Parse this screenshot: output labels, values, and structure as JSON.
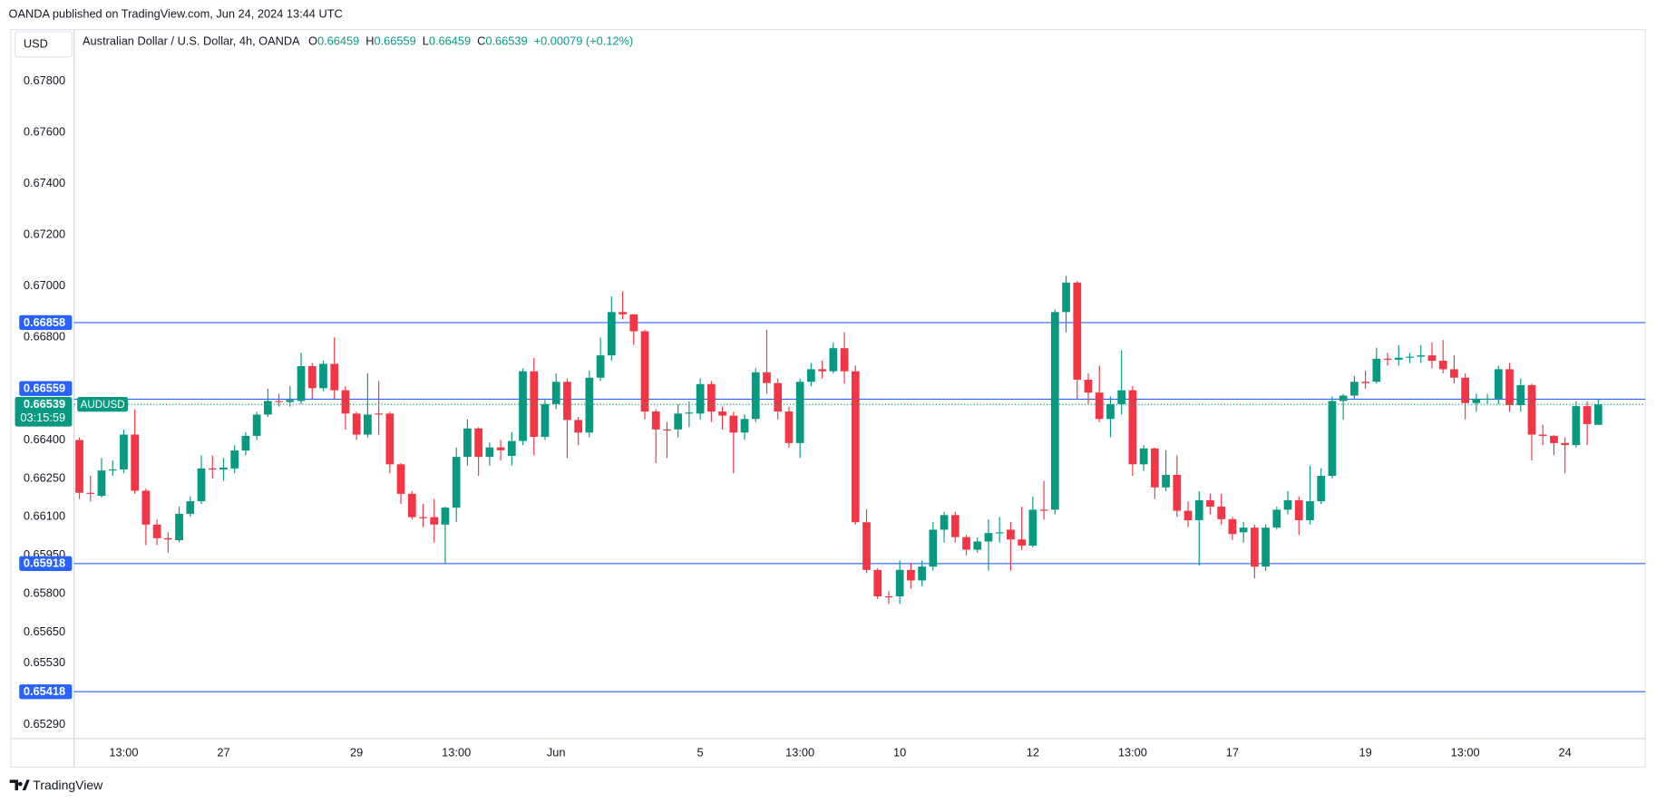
{
  "header": {
    "publisher_line": "OANDA published on TradingView.com, Jun 24, 2024 13:44 UTC",
    "currency": "USD",
    "footer": "TradingView"
  },
  "chart_data": {
    "type": "candlestick",
    "legend_title": "Australian Dollar / U.S. Dollar, 4h, OANDA",
    "ohlc_letters": [
      "O",
      "H",
      "L",
      "C"
    ],
    "change": "+0.00079 (+0.12%)",
    "symbol": "AUDUSD",
    "countdown": "03:15:59",
    "up_color": "#089981",
    "down_color": "#f23645",
    "level_color": "#2962ff",
    "levels": [
      0.66858,
      0.66559,
      0.65918,
      0.65418
    ],
    "ylim": [
      0.65235,
      0.68001
    ],
    "yticks": [
      {
        "value": 0.678,
        "label": "0.67800"
      },
      {
        "value": 0.676,
        "label": "0.67600"
      },
      {
        "value": 0.674,
        "label": "0.67400"
      },
      {
        "value": 0.672,
        "label": "0.67200"
      },
      {
        "value": 0.67,
        "label": "0.67000"
      },
      {
        "value": 0.668,
        "label": "0.66800"
      },
      {
        "value": 0.664,
        "label": "0.66400"
      },
      {
        "value": 0.6625,
        "label": "0.66250"
      },
      {
        "value": 0.661,
        "label": "0.66100"
      },
      {
        "value": 0.6595,
        "label": "0.65950"
      },
      {
        "value": 0.658,
        "label": "0.65800"
      },
      {
        "value": 0.6565,
        "label": "0.65650"
      },
      {
        "value": 0.6553,
        "label": "0.65530"
      },
      {
        "value": 0.6529,
        "label": "0.65290"
      }
    ],
    "categories": [
      null,
      null,
      null,
      null,
      "13:00",
      null,
      null,
      null,
      null,
      null,
      null,
      null,
      null,
      "27",
      null,
      null,
      null,
      null,
      null,
      null,
      null,
      null,
      null,
      null,
      null,
      "29",
      null,
      null,
      null,
      null,
      null,
      null,
      null,
      null,
      "13:00",
      null,
      null,
      null,
      null,
      null,
      null,
      null,
      null,
      "Jun",
      null,
      null,
      null,
      null,
      null,
      null,
      null,
      null,
      null,
      null,
      null,
      null,
      "5",
      null,
      null,
      null,
      null,
      null,
      null,
      null,
      null,
      "13:00",
      null,
      null,
      null,
      null,
      null,
      null,
      null,
      null,
      "10",
      null,
      null,
      null,
      null,
      null,
      null,
      null,
      null,
      null,
      null,
      null,
      "12",
      null,
      null,
      null,
      null,
      null,
      null,
      null,
      null,
      "13:00",
      null,
      null,
      null,
      null,
      null,
      null,
      null,
      null,
      "17",
      null,
      null,
      null,
      null,
      null,
      null,
      null,
      null,
      null,
      null,
      null,
      "19",
      null,
      null,
      null,
      null,
      null,
      null,
      null,
      null,
      "13:00",
      null,
      null,
      null,
      null,
      null,
      null,
      null,
      null,
      "24",
      null,
      null,
      null
    ],
    "open": [
      0.664,
      0.66194,
      0.66182,
      0.66281,
      0.66285,
      0.66421,
      0.66202,
      0.6607,
      0.66017,
      0.66009,
      0.66112,
      0.66161,
      0.66289,
      0.66285,
      0.66289,
      0.66359,
      0.66416,
      0.66499,
      0.66552,
      0.66548,
      0.66552,
      0.66688,
      0.66602,
      0.66697,
      0.66594,
      0.66503,
      0.66421,
      0.66503,
      0.66503,
      0.66305,
      0.6619,
      0.66099,
      0.66099,
      0.6607,
      0.66136,
      0.66334,
      0.66445,
      0.66334,
      0.66371,
      0.66338,
      0.66396,
      0.66668,
      0.66412,
      0.6654,
      0.66627,
      0.66478,
      0.66429,
      0.66643,
      0.6673,
      0.66899,
      0.6689,
      0.66824,
      0.66511,
      0.66441,
      0.66441,
      0.66503,
      0.66503,
      0.66618,
      0.66511,
      0.66495,
      0.66429,
      0.66482,
      0.66664,
      0.66622,
      0.66511,
      0.66388,
      0.66627,
      0.66676,
      0.66668,
      0.66758,
      0.66668,
      0.66079,
      0.65893,
      0.6579,
      0.6579,
      0.65893,
      0.65852,
      0.65906,
      0.6605,
      0.66107,
      0.66021,
      0.65972,
      0.66004,
      0.66037,
      0.6605,
      0.66012,
      0.65988,
      0.66128,
      0.66128,
      0.66899,
      0.67014,
      0.66635,
      0.66585,
      0.66482,
      0.6654,
      0.66594,
      0.66305,
      0.66367,
      0.66215,
      0.66264,
      0.66124,
      0.66087,
      0.66165,
      0.6614,
      0.66091,
      0.6604,
      0.66058,
      0.65906,
      0.66058,
      0.66128,
      0.66165,
      0.66087,
      0.66161,
      0.6626,
      0.66552,
      0.66573,
      0.66627,
      0.66627,
      0.66717,
      0.66713,
      0.66721,
      0.66725,
      0.6673,
      0.66709,
      0.66676,
      0.66643,
      0.66544,
      0.66561,
      0.66561,
      0.66676,
      0.66536,
      0.66614,
      0.66421,
      0.66416,
      0.66388,
      0.6638,
      0.66532,
      0.66459
    ],
    "high": [
      0.6641,
      0.6626,
      0.6633,
      0.6632,
      0.6644,
      0.6652,
      0.6621,
      0.6609,
      0.6604,
      0.6614,
      0.6618,
      0.6634,
      0.6634,
      0.6633,
      0.6638,
      0.6643,
      0.6651,
      0.666,
      0.6658,
      0.6661,
      0.6674,
      0.667,
      0.6671,
      0.668,
      0.6661,
      0.6651,
      0.6666,
      0.6663,
      0.6651,
      0.6631,
      0.662,
      0.6615,
      0.6617,
      0.6614,
      0.6637,
      0.6648,
      0.6645,
      0.6639,
      0.664,
      0.6643,
      0.6668,
      0.6672,
      0.6656,
      0.6666,
      0.6664,
      0.6649,
      0.6667,
      0.668,
      0.6696,
      0.6698,
      0.6689,
      0.6683,
      0.6652,
      0.6647,
      0.6654,
      0.6655,
      0.6664,
      0.6663,
      0.6653,
      0.6651,
      0.665,
      0.6668,
      0.6683,
      0.6664,
      0.6653,
      0.6664,
      0.667,
      0.6671,
      0.6678,
      0.6682,
      0.6669,
      0.6613,
      0.659,
      0.6581,
      0.6593,
      0.6592,
      0.6593,
      0.6608,
      0.6612,
      0.6612,
      0.6603,
      0.6602,
      0.6609,
      0.661,
      0.6608,
      0.6614,
      0.6618,
      0.6624,
      0.6691,
      0.6704,
      0.6702,
      0.6666,
      0.6669,
      0.6657,
      0.6675,
      0.6661,
      0.6638,
      0.6637,
      0.6636,
      0.6634,
      0.6616,
      0.662,
      0.6619,
      0.6619,
      0.661,
      0.6608,
      0.6607,
      0.6607,
      0.6614,
      0.662,
      0.6618,
      0.663,
      0.6629,
      0.6657,
      0.6658,
      0.6665,
      0.6667,
      0.6676,
      0.6674,
      0.6677,
      0.6674,
      0.6677,
      0.6678,
      0.6679,
      0.6673,
      0.6666,
      0.6658,
      0.6658,
      0.6669,
      0.667,
      0.6664,
      0.6662,
      0.6646,
      0.6642,
      0.6641,
      0.6655,
      0.6655,
      0.66559
    ],
    "low": [
      0.6617,
      0.6616,
      0.66175,
      0.6626,
      0.6627,
      0.6619,
      0.6599,
      0.6599,
      0.6596,
      0.66,
      0.661,
      0.6615,
      0.6625,
      0.6624,
      0.6627,
      0.6634,
      0.664,
      0.6649,
      0.6653,
      0.6653,
      0.6654,
      0.6656,
      0.6659,
      0.6656,
      0.6644,
      0.664,
      0.6641,
      0.6642,
      0.6627,
      0.6615,
      0.6609,
      0.6606,
      0.66,
      0.6592,
      0.6608,
      0.663,
      0.6626,
      0.663,
      0.6632,
      0.663,
      0.6638,
      0.6634,
      0.664,
      0.6652,
      0.6633,
      0.6638,
      0.6641,
      0.6663,
      0.6671,
      0.6687,
      0.6677,
      0.6648,
      0.6631,
      0.6633,
      0.6641,
      0.6645,
      0.6648,
      0.6647,
      0.6644,
      0.6627,
      0.664,
      0.6647,
      0.6658,
      0.6648,
      0.6637,
      0.6633,
      0.6661,
      0.6664,
      0.6666,
      0.6662,
      0.6607,
      0.6588,
      0.6578,
      0.6576,
      0.6576,
      0.6582,
      0.6583,
      0.6589,
      0.66,
      0.66,
      0.6595,
      0.6596,
      0.6589,
      0.66,
      0.6589,
      0.6597,
      0.6598,
      0.6609,
      0.6611,
      0.6682,
      0.6656,
      0.6654,
      0.6647,
      0.6641,
      0.665,
      0.6626,
      0.6628,
      0.6617,
      0.662,
      0.661,
      0.6606,
      0.6591,
      0.6611,
      0.6607,
      0.6601,
      0.66,
      0.6586,
      0.6589,
      0.6605,
      0.6611,
      0.6603,
      0.6607,
      0.6615,
      0.6625,
      0.6648,
      0.6656,
      0.666,
      0.6662,
      0.6669,
      0.6669,
      0.667,
      0.667,
      0.6668,
      0.6666,
      0.6662,
      0.6648,
      0.6651,
      0.6654,
      0.6654,
      0.6651,
      0.6651,
      0.6632,
      0.6638,
      0.6634,
      0.6627,
      0.6637,
      0.6638,
      0.66459
    ],
    "close": [
      0.66194,
      0.6619,
      0.66281,
      0.66285,
      0.66421,
      0.66202,
      0.6607,
      0.66017,
      0.66012,
      0.66112,
      0.66161,
      0.66289,
      0.66285,
      0.66292,
      0.66359,
      0.66416,
      0.66499,
      0.66552,
      0.66548,
      0.66556,
      0.66688,
      0.66602,
      0.66697,
      0.66594,
      0.66503,
      0.66421,
      0.66499,
      0.66499,
      0.66305,
      0.6619,
      0.66099,
      0.66095,
      0.6607,
      0.66136,
      0.66334,
      0.66445,
      0.66334,
      0.66371,
      0.6636,
      0.66396,
      0.66668,
      0.66412,
      0.6654,
      0.66627,
      0.66478,
      0.66429,
      0.66643,
      0.6673,
      0.66899,
      0.6689,
      0.66824,
      0.66511,
      0.66441,
      0.66437,
      0.66503,
      0.66507,
      0.66618,
      0.66511,
      0.66495,
      0.66429,
      0.66482,
      0.66664,
      0.66622,
      0.66511,
      0.66388,
      0.66627,
      0.66676,
      0.66668,
      0.66758,
      0.66668,
      0.66079,
      0.65893,
      0.6579,
      0.65786,
      0.65893,
      0.65852,
      0.65906,
      0.6605,
      0.66107,
      0.66021,
      0.65972,
      0.66004,
      0.66037,
      0.6604,
      0.66012,
      0.65988,
      0.66128,
      0.66124,
      0.66899,
      0.67014,
      0.66635,
      0.66585,
      0.66482,
      0.6654,
      0.66594,
      0.66305,
      0.66367,
      0.66215,
      0.66264,
      0.66124,
      0.66087,
      0.66165,
      0.6614,
      0.66091,
      0.66033,
      0.66058,
      0.65906,
      0.66058,
      0.66128,
      0.66165,
      0.66087,
      0.66161,
      0.6626,
      0.66552,
      0.66573,
      0.66627,
      0.66622,
      0.66717,
      0.66713,
      0.66721,
      0.66725,
      0.6673,
      0.66709,
      0.66676,
      0.66643,
      0.66544,
      0.66561,
      0.66561,
      0.66676,
      0.66536,
      0.66614,
      0.66421,
      0.66416,
      0.66388,
      0.6638,
      0.66532,
      0.66462,
      0.66539
    ]
  }
}
